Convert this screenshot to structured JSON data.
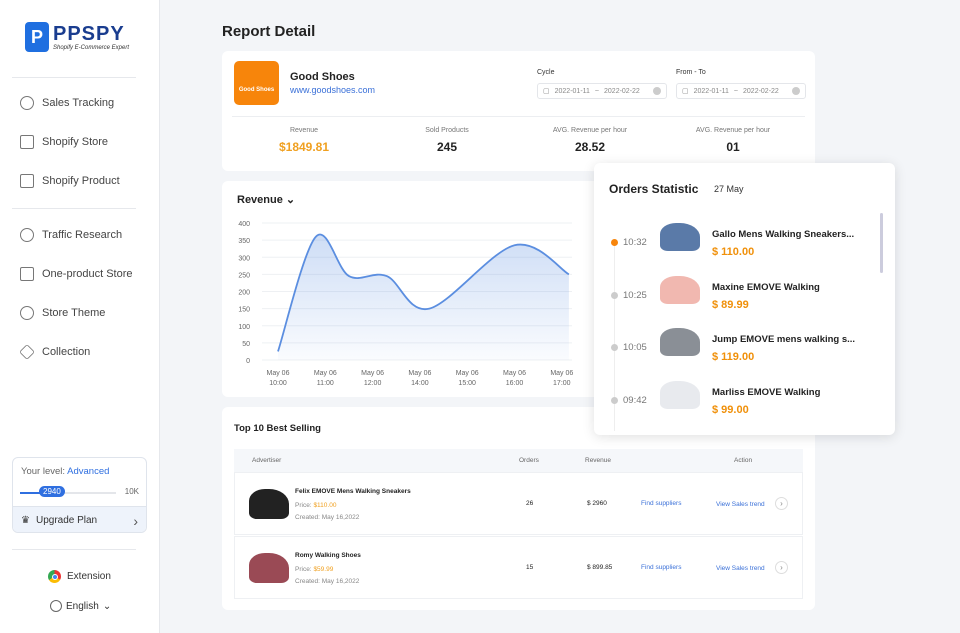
{
  "brand": {
    "name": "PPSPY",
    "tagline": "Shopify E-Commerce Expert"
  },
  "sidebar": {
    "items": [
      {
        "label": "Sales Tracking",
        "icon": "target-icon"
      },
      {
        "label": "Shopify Store",
        "icon": "store-icon"
      },
      {
        "label": "Shopify Product",
        "icon": "box-icon"
      },
      {
        "label": "Traffic Research",
        "icon": "pie-icon"
      },
      {
        "label": "One-product Store",
        "icon": "home-icon"
      },
      {
        "label": "Store Theme",
        "icon": "palette-icon"
      },
      {
        "label": "Collection",
        "icon": "star-icon"
      }
    ],
    "level": {
      "label": "Your level:",
      "value": "Advanced",
      "progress": 2940,
      "progress_label": "2940",
      "max_label": "10K",
      "max": 10000
    },
    "upgrade": "Upgrade Plan",
    "extension": "Extension",
    "language": "English"
  },
  "page": {
    "title": "Report Detail"
  },
  "shop": {
    "logo_text": "Good Shoes",
    "name": "Good Shoes",
    "url": "www.goodshoes.com",
    "cycle_label": "Cycle",
    "cycle_from": "2022-01-11",
    "cycle_to": "2022-02-22",
    "range_label": "From - To",
    "range_from": "2022-01-11",
    "range_to": "2022-02-22",
    "sep": "~"
  },
  "kpis": [
    {
      "label": "Revenue",
      "value": "$1849.81",
      "color": "#f0a020"
    },
    {
      "label": "Sold Products",
      "value": "245"
    },
    {
      "label": "AVG. Revenue per hour",
      "value": "28.52"
    },
    {
      "label": "AVG. Revenue per hour",
      "value": "01"
    }
  ],
  "chart_data": {
    "type": "area",
    "title": "Revenue",
    "ylim": [
      0,
      400
    ],
    "yticks": [
      0,
      50,
      100,
      150,
      200,
      250,
      300,
      350,
      400
    ],
    "xticks": [
      [
        "May 06",
        "10:00"
      ],
      [
        "May 06",
        "11:00"
      ],
      [
        "May 06",
        "12:00"
      ],
      [
        "May 06",
        "14:00"
      ],
      [
        "May 06",
        "15:00"
      ],
      [
        "May 06",
        "16:00"
      ],
      [
        "May 06",
        "17:00"
      ]
    ],
    "points": [
      [
        0,
        25
      ],
      [
        0.8,
        360
      ],
      [
        1.5,
        245
      ],
      [
        2.3,
        245
      ],
      [
        3.2,
        150
      ],
      [
        5,
        335
      ],
      [
        6.15,
        250
      ]
    ],
    "color": "#5b8ee0"
  },
  "best": {
    "title": "Top 10 Best Selling",
    "headers": [
      "Advertiser",
      "Orders",
      "Revenue",
      "Action"
    ],
    "rows": [
      {
        "name": "Felix EMOVE Mens Walking Sneakers",
        "price_label": "Price:",
        "price": "$110.00",
        "created_label": "Created:",
        "created": "May 16,2022",
        "orders": "26",
        "revenue": "$ 2960",
        "find": "Find suppliers",
        "trend": "View Sales trend",
        "color": "#222"
      },
      {
        "name": "Romy Walking Shoes",
        "price_label": "Price:",
        "price": "$59.99",
        "created_label": "Created:",
        "created": "May 16,2022",
        "orders": "15",
        "revenue": "$ 899.85",
        "find": "Find suppliers",
        "trend": "View Sales trend",
        "color": "#9a4a55"
      }
    ]
  },
  "orders": {
    "title": "Orders Statistic",
    "date": "27 May",
    "items": [
      {
        "time": "10:32",
        "name": "Gallo Mens Walking Sneakers...",
        "price": "$ 110.00",
        "color": "#5a7aa8"
      },
      {
        "time": "10:25",
        "name": "Maxine EMOVE Walking",
        "price": "$ 89.99",
        "color": "#f1b8b0"
      },
      {
        "time": "10:05",
        "name": "Jump EMOVE mens walking s...",
        "price": "$ 119.00",
        "color": "#8a8f96"
      },
      {
        "time": "09:42",
        "name": "Marliss EMOVE Walking",
        "price": "$ 99.00",
        "color": "#e8eaee"
      }
    ]
  }
}
